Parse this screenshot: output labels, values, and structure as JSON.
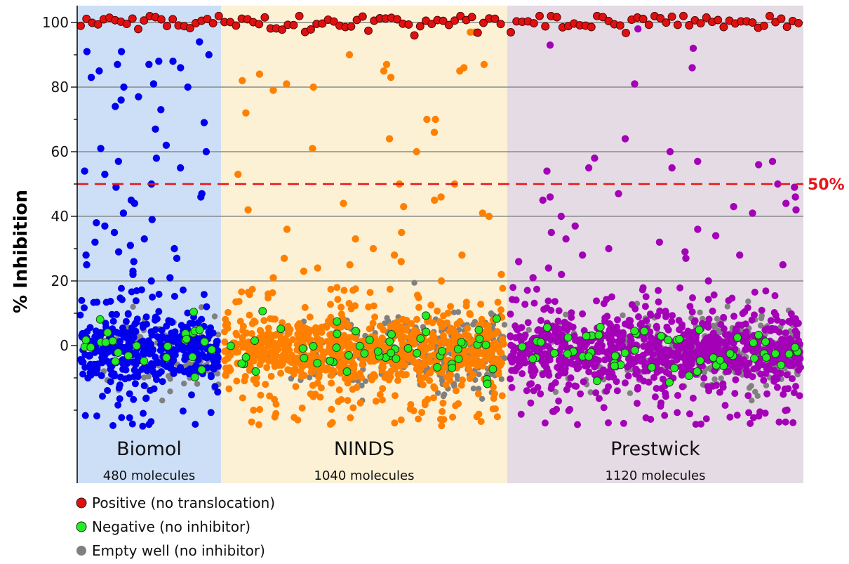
{
  "chart_data": {
    "type": "scatter",
    "title": "",
    "xlabel": "",
    "ylabel": "% Inhibition",
    "ylim": [
      -27,
      104
    ],
    "y_ticks_labeled": [
      0,
      20,
      40,
      60,
      80,
      100
    ],
    "y_minor_tick_step": 10,
    "grid": true,
    "threshold": {
      "value": 50,
      "label": "50%",
      "color": "#e8161b",
      "style": "dashed"
    },
    "libraries": [
      {
        "name": "Biomol",
        "count_label": "480 molecules",
        "molecules": 480,
        "color": "#0000ee",
        "background": "#ccdff7"
      },
      {
        "name": "NINDS",
        "count_label": "1040 molecules",
        "molecules": 1040,
        "color": "#ff8000",
        "background": "#fcf1d4"
      },
      {
        "name": "Prestwick",
        "count_label": "1120 molecules",
        "molecules": 1120,
        "color": "#a300b8",
        "background": "#e5dbe4"
      }
    ],
    "series": [
      {
        "name": "Positive (no translocation)",
        "key": "positive",
        "color": "#e01010",
        "outline": true,
        "typical_range": [
          96,
          102
        ]
      },
      {
        "name": "Negative (no inhibitor)",
        "key": "negative",
        "color": "#22ee22",
        "outline": true,
        "typical_range": [
          -15,
          16
        ]
      },
      {
        "name": "Empty well (no inhibitor)",
        "key": "empty",
        "color": "#808080",
        "outline": false,
        "typical_range": [
          -17,
          25
        ]
      }
    ],
    "compound_hits": {
      "Biomol": [
        94,
        81,
        88,
        87,
        85,
        83,
        90,
        91,
        91,
        87,
        88,
        86,
        80,
        80,
        77,
        76,
        74,
        73,
        69,
        67,
        62,
        61,
        60,
        57,
        58,
        55,
        54,
        53,
        50,
        49,
        47,
        46,
        45,
        44,
        41,
        39,
        38,
        37,
        35,
        33,
        32,
        31,
        30,
        29,
        28,
        27,
        26,
        25,
        23,
        22,
        21,
        20
      ],
      "NINDS": [
        97,
        97,
        90,
        87,
        87,
        86,
        85,
        85,
        84,
        83,
        82,
        81,
        80,
        79,
        72,
        70,
        70,
        66,
        64,
        61,
        60,
        53,
        50,
        50,
        46,
        45,
        44,
        43,
        42,
        41,
        40,
        36,
        35,
        33,
        30,
        28,
        28,
        27,
        26,
        25,
        24,
        23,
        22,
        21,
        20
      ],
      "Prestwick": [
        98,
        93,
        92,
        86,
        81,
        64,
        60,
        58,
        57,
        57,
        56,
        55,
        55,
        54,
        50,
        49,
        47,
        46,
        46,
        45,
        44,
        43,
        42,
        41,
        40,
        37,
        36,
        35,
        34,
        33,
        32,
        30,
        29,
        28,
        28,
        27,
        26,
        25,
        24,
        22,
        21,
        20
      ]
    }
  }
}
